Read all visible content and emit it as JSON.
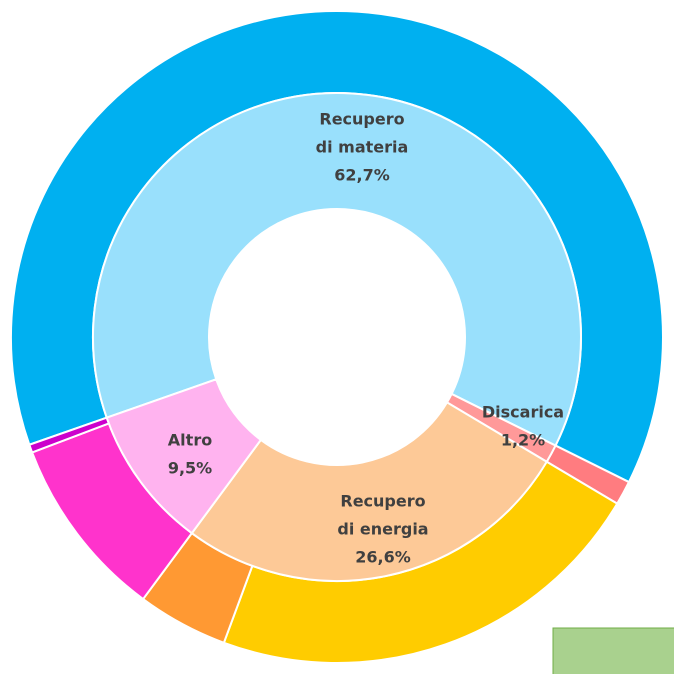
{
  "chart_data": {
    "type": "nested-donut",
    "start_angle": 250.7,
    "inner": {
      "categories": [
        [
          "Recupero",
          "di materia"
        ],
        [
          "Discarica"
        ],
        [
          "Recupero",
          "di energia"
        ],
        [
          "Altro"
        ]
      ],
      "values": [
        62.7,
        1.2,
        26.6,
        9.5
      ],
      "value_labels": [
        "62,7%",
        "1,2%",
        "26,6%",
        "9,5%"
      ],
      "colors": [
        "#99e0fc",
        "#ff9999",
        "#fdc997",
        "#ffb3ef"
      ]
    },
    "outer": {
      "values": [
        62.7,
        1.2,
        22.1,
        4.5,
        9.1,
        0.4
      ],
      "colors": [
        "#00b0f0",
        "#ff7c80",
        "#ffcc00",
        "#ff9933",
        "#ff33cc",
        "#cc00cc"
      ]
    }
  }
}
